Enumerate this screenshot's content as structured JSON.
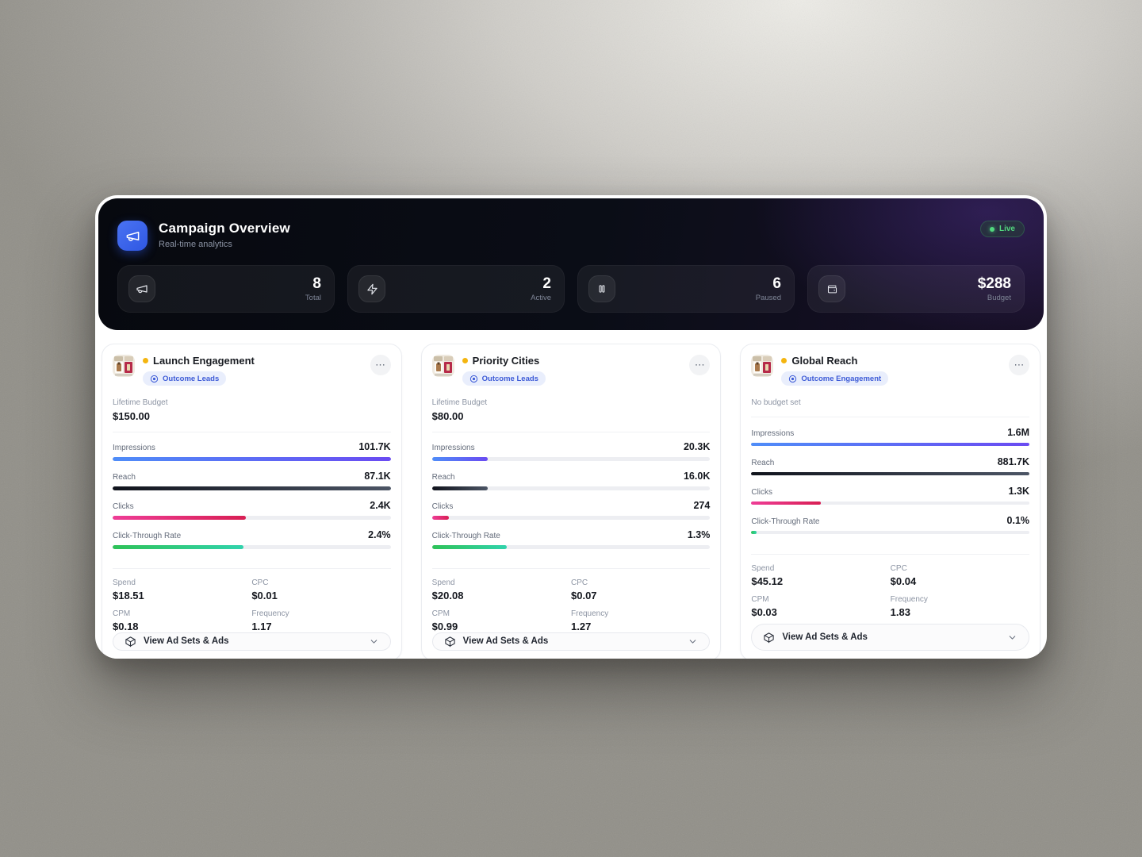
{
  "theme": {
    "accent_blue": "#3d5bd7",
    "badge_bg": "#e9eefc",
    "live_green": "#52d87e",
    "status_yellow": "#f4b510",
    "bar_track": "#edeef2",
    "header_icon_bg": "#2f57e3",
    "impressions_from": "#4f8df8",
    "impressions_to": "#6a4bf2",
    "reach_from": "#10131c",
    "reach_to": "#4c5565",
    "clicks_from": "#ee3d96",
    "clicks_to": "#d81f54",
    "ctr_from": "#2ec258",
    "ctr_to": "#31d3ac"
  },
  "header": {
    "title": "Campaign Overview",
    "subtitle": "Real-time analytics",
    "live_label": "Live",
    "logo_icon": "megaphone-icon",
    "stats": [
      {
        "icon": "megaphone-icon",
        "value": "8",
        "label": "Total"
      },
      {
        "icon": "lightning-icon",
        "value": "2",
        "label": "Active"
      },
      {
        "icon": "pause-icon",
        "value": "6",
        "label": "Paused"
      },
      {
        "icon": "wallet-icon",
        "value": "$288",
        "label": "Budget"
      }
    ]
  },
  "campaigns": [
    {
      "name": "Launch Engagement",
      "objective_badge": "Outcome Leads",
      "badge_icon": "target-icon",
      "budget_label": "Lifetime Budget",
      "budget_value": "$150.00",
      "metrics": [
        {
          "label": "Impressions",
          "value": "101.7K",
          "pct": 100
        },
        {
          "label": "Reach",
          "value": "87.1K",
          "pct": 100
        },
        {
          "label": "Clicks",
          "value": "2.4K",
          "pct": 48
        },
        {
          "label": "Click-Through Rate",
          "value": "2.4%",
          "pct": 47
        }
      ],
      "stats": [
        {
          "label": "Spend",
          "value": "$18.51"
        },
        {
          "label": "CPC",
          "value": "$0.01"
        },
        {
          "label": "CPM",
          "value": "$0.18"
        },
        {
          "label": "Frequency",
          "value": "1.17"
        }
      ],
      "action_label": "View Ad Sets & Ads"
    },
    {
      "name": "Priority Cities",
      "objective_badge": "Outcome Leads",
      "badge_icon": "target-icon",
      "budget_label": "Lifetime Budget",
      "budget_value": "$80.00",
      "metrics": [
        {
          "label": "Impressions",
          "value": "20.3K",
          "pct": 20
        },
        {
          "label": "Reach",
          "value": "16.0K",
          "pct": 20
        },
        {
          "label": "Clicks",
          "value": "274",
          "pct": 6
        },
        {
          "label": "Click-Through Rate",
          "value": "1.3%",
          "pct": 27
        }
      ],
      "stats": [
        {
          "label": "Spend",
          "value": "$20.08"
        },
        {
          "label": "CPC",
          "value": "$0.07"
        },
        {
          "label": "CPM",
          "value": "$0.99"
        },
        {
          "label": "Frequency",
          "value": "1.27"
        }
      ],
      "action_label": "View Ad Sets & Ads"
    },
    {
      "name": "Global Reach",
      "objective_badge": "Outcome Engagement",
      "badge_icon": "target-icon",
      "budget_label": "No budget set",
      "metrics": [
        {
          "label": "Impressions",
          "value": "1.6M",
          "pct": 100
        },
        {
          "label": "Reach",
          "value": "881.7K",
          "pct": 100
        },
        {
          "label": "Clicks",
          "value": "1.3K",
          "pct": 25
        },
        {
          "label": "Click-Through Rate",
          "value": "0.1%",
          "pct": 2
        }
      ],
      "stats": [
        {
          "label": "Spend",
          "value": "$45.12"
        },
        {
          "label": "CPC",
          "value": "$0.04"
        },
        {
          "label": "CPM",
          "value": "$0.03"
        },
        {
          "label": "Frequency",
          "value": "1.83"
        }
      ],
      "action_label": "View Ad Sets & Ads"
    }
  ]
}
